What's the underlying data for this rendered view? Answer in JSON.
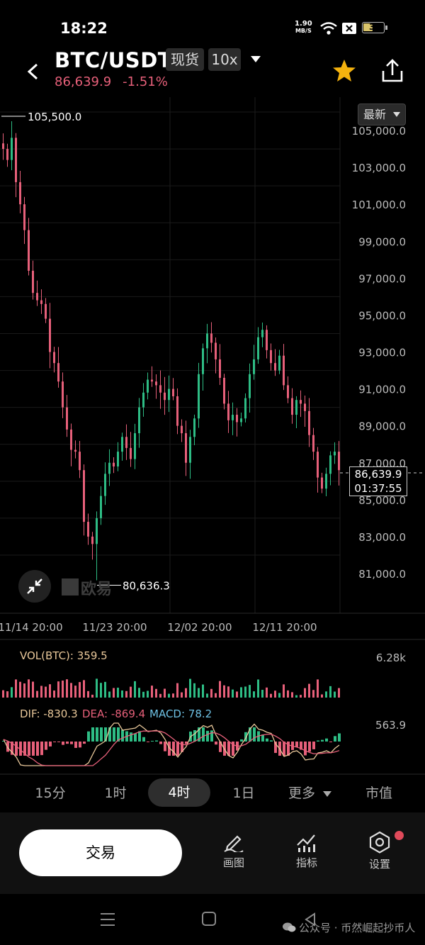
{
  "status": {
    "time": "18:22",
    "net_speed": "1.90",
    "net_unit": "MB/S",
    "battery": "39"
  },
  "header": {
    "pair": "BTC/USDT",
    "market_tag": "现货",
    "leverage_tag": "10x",
    "last_price": "86,639.9",
    "change_pct": "-1.51%"
  },
  "chart": {
    "latest_button": "最新",
    "price_labels": [
      "105,000.0",
      "103,000.0",
      "101,000.0",
      "99,000.0",
      "97,000.0",
      "95,000.0",
      "93,000.0",
      "91,000.0",
      "89,000.0",
      "87,000.0",
      "85,000.0",
      "83,000.0",
      "81,000.0"
    ],
    "time_labels": [
      "11/14 20:00",
      "11/23 20:00",
      "12/02 20:00",
      "12/11 20:00"
    ],
    "high_marker": "105,500.0",
    "low_marker": "80,636.3",
    "current_price": "86,639.9",
    "countdown": "01:37:55",
    "logo_text": "欧易",
    "colors": {
      "up": "#2ebd85",
      "down": "#e7607a",
      "bg": "#000000"
    }
  },
  "chart_data": {
    "type": "candlestick",
    "ylim": [
      80000,
      106000
    ],
    "price_ticks": [
      105000,
      103000,
      101000,
      99000,
      97000,
      95000,
      93000,
      91000,
      89000,
      87000,
      85000,
      83000,
      81000
    ],
    "high": 105500.0,
    "low": 80636.3,
    "last": 86639.9,
    "close_path": [
      104000,
      103400,
      104600,
      102200,
      101000,
      99600,
      97400,
      96200,
      95800,
      95600,
      94800,
      93000,
      92400,
      91400,
      90000,
      88800,
      87700,
      87600,
      86600,
      83800,
      83000,
      82600,
      84000,
      85200,
      86400,
      87000,
      86800,
      87600,
      88400,
      87800,
      87200,
      88600,
      90000,
      90800,
      91500,
      91400,
      91200,
      90800,
      90400,
      91000,
      90600,
      89000,
      88600,
      87000,
      88400,
      89400,
      91800,
      93200,
      94000,
      93500,
      92600,
      91600,
      90200,
      89300,
      89600,
      89200,
      89400,
      90500,
      91800,
      92600,
      93800,
      94200,
      93100,
      92400,
      92000,
      92800,
      91200,
      90500,
      89600,
      90400,
      90200,
      89800,
      88500,
      87600,
      86200,
      85600,
      86400,
      87400,
      87600,
      86600
    ],
    "volume": {
      "label": "VOL(BTC): 359.5",
      "axis": "6.28k"
    },
    "macd": {
      "label_dif": "DIF: -830.3",
      "label_dea": "DEA: -869.4",
      "label_macd": "MACD: 78.2",
      "axis": "563.9"
    }
  },
  "timeframes": [
    "15分",
    "1时",
    "4时",
    "1日",
    "更多",
    "市值"
  ],
  "active_timeframe": "4时",
  "bottom": {
    "trade": "交易",
    "tools": [
      "画图",
      "指标",
      "设置"
    ]
  },
  "watermark": "公众号 · 币然崛起抄币人"
}
